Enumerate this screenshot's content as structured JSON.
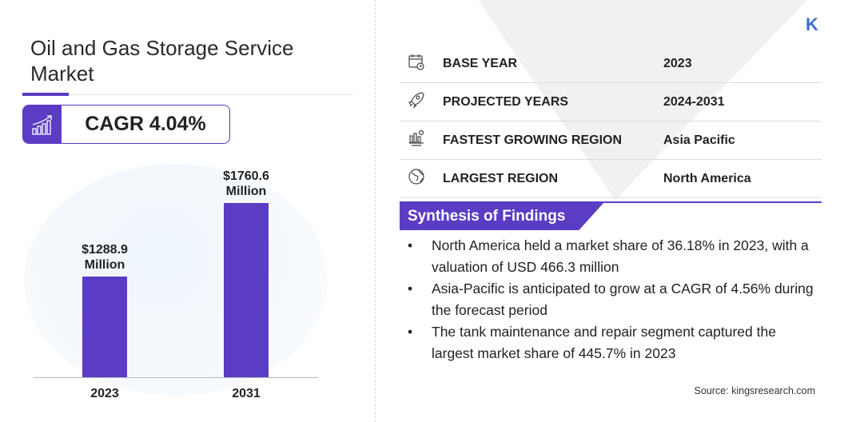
{
  "title": "Oil and Gas Storage Service Market",
  "cagr": "CAGR 4.04%",
  "chart_data": {
    "type": "bar",
    "categories": [
      "2023",
      "2031"
    ],
    "values": [
      1288.9,
      1760.6
    ],
    "data_labels": [
      "$1288.9 Million",
      "$1760.6 Million"
    ],
    "unit": "Million USD",
    "color": "#5b3cc4"
  },
  "bar_labels": [
    {
      "l1": "$1288.9",
      "l2": "Million"
    },
    {
      "l1": "$1760.6",
      "l2": "Million"
    }
  ],
  "info": [
    {
      "icon": "calendar-clock-icon",
      "label": "BASE YEAR",
      "value": "2023"
    },
    {
      "icon": "rocket-icon",
      "label": "PROJECTED YEARS",
      "value": "2024-2031"
    },
    {
      "icon": "growth-region-icon",
      "label": "FASTEST GROWING REGION",
      "value": "Asia Pacific"
    },
    {
      "icon": "globe-icon",
      "label": "LARGEST REGION",
      "value": "North America"
    }
  ],
  "synthesis_title": "Synthesis of Findings",
  "findings": [
    "North America held a market share of 36.18% in 2023, with a valuation of USD 466.3 million",
    "Asia-Pacific is anticipated to grow at a CAGR of 4.56% during the forecast period",
    "The tank maintenance and repair segment captured the largest market share of 445.7% in 2023"
  ],
  "source": "Source:  kingsresearch.com",
  "logo": "K",
  "accent": "#5b3cc4"
}
